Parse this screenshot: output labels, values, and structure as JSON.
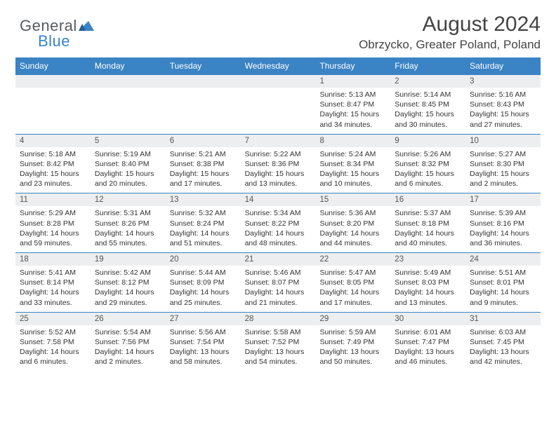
{
  "logo": {
    "general": "General",
    "blue": "Blue"
  },
  "title": "August 2024",
  "location": "Obrzycko, Greater Poland, Poland",
  "colors": {
    "header_bg": "#3a83c4",
    "band_bg": "#edeeef",
    "band_border": "#3a83c4",
    "page_bg": "#ffffff",
    "text": "#333333"
  },
  "dow": [
    "Sunday",
    "Monday",
    "Tuesday",
    "Wednesday",
    "Thursday",
    "Friday",
    "Saturday"
  ],
  "weeks": [
    [
      null,
      null,
      null,
      null,
      {
        "n": "1",
        "sr": "Sunrise: 5:13 AM",
        "ss": "Sunset: 8:47 PM",
        "dl1": "Daylight: 15 hours",
        "dl2": "and 34 minutes."
      },
      {
        "n": "2",
        "sr": "Sunrise: 5:14 AM",
        "ss": "Sunset: 8:45 PM",
        "dl1": "Daylight: 15 hours",
        "dl2": "and 30 minutes."
      },
      {
        "n": "3",
        "sr": "Sunrise: 5:16 AM",
        "ss": "Sunset: 8:43 PM",
        "dl1": "Daylight: 15 hours",
        "dl2": "and 27 minutes."
      }
    ],
    [
      {
        "n": "4",
        "sr": "Sunrise: 5:18 AM",
        "ss": "Sunset: 8:42 PM",
        "dl1": "Daylight: 15 hours",
        "dl2": "and 23 minutes."
      },
      {
        "n": "5",
        "sr": "Sunrise: 5:19 AM",
        "ss": "Sunset: 8:40 PM",
        "dl1": "Daylight: 15 hours",
        "dl2": "and 20 minutes."
      },
      {
        "n": "6",
        "sr": "Sunrise: 5:21 AM",
        "ss": "Sunset: 8:38 PM",
        "dl1": "Daylight: 15 hours",
        "dl2": "and 17 minutes."
      },
      {
        "n": "7",
        "sr": "Sunrise: 5:22 AM",
        "ss": "Sunset: 8:36 PM",
        "dl1": "Daylight: 15 hours",
        "dl2": "and 13 minutes."
      },
      {
        "n": "8",
        "sr": "Sunrise: 5:24 AM",
        "ss": "Sunset: 8:34 PM",
        "dl1": "Daylight: 15 hours",
        "dl2": "and 10 minutes."
      },
      {
        "n": "9",
        "sr": "Sunrise: 5:26 AM",
        "ss": "Sunset: 8:32 PM",
        "dl1": "Daylight: 15 hours",
        "dl2": "and 6 minutes."
      },
      {
        "n": "10",
        "sr": "Sunrise: 5:27 AM",
        "ss": "Sunset: 8:30 PM",
        "dl1": "Daylight: 15 hours",
        "dl2": "and 2 minutes."
      }
    ],
    [
      {
        "n": "11",
        "sr": "Sunrise: 5:29 AM",
        "ss": "Sunset: 8:28 PM",
        "dl1": "Daylight: 14 hours",
        "dl2": "and 59 minutes."
      },
      {
        "n": "12",
        "sr": "Sunrise: 5:31 AM",
        "ss": "Sunset: 8:26 PM",
        "dl1": "Daylight: 14 hours",
        "dl2": "and 55 minutes."
      },
      {
        "n": "13",
        "sr": "Sunrise: 5:32 AM",
        "ss": "Sunset: 8:24 PM",
        "dl1": "Daylight: 14 hours",
        "dl2": "and 51 minutes."
      },
      {
        "n": "14",
        "sr": "Sunrise: 5:34 AM",
        "ss": "Sunset: 8:22 PM",
        "dl1": "Daylight: 14 hours",
        "dl2": "and 48 minutes."
      },
      {
        "n": "15",
        "sr": "Sunrise: 5:36 AM",
        "ss": "Sunset: 8:20 PM",
        "dl1": "Daylight: 14 hours",
        "dl2": "and 44 minutes."
      },
      {
        "n": "16",
        "sr": "Sunrise: 5:37 AM",
        "ss": "Sunset: 8:18 PM",
        "dl1": "Daylight: 14 hours",
        "dl2": "and 40 minutes."
      },
      {
        "n": "17",
        "sr": "Sunrise: 5:39 AM",
        "ss": "Sunset: 8:16 PM",
        "dl1": "Daylight: 14 hours",
        "dl2": "and 36 minutes."
      }
    ],
    [
      {
        "n": "18",
        "sr": "Sunrise: 5:41 AM",
        "ss": "Sunset: 8:14 PM",
        "dl1": "Daylight: 14 hours",
        "dl2": "and 33 minutes."
      },
      {
        "n": "19",
        "sr": "Sunrise: 5:42 AM",
        "ss": "Sunset: 8:12 PM",
        "dl1": "Daylight: 14 hours",
        "dl2": "and 29 minutes."
      },
      {
        "n": "20",
        "sr": "Sunrise: 5:44 AM",
        "ss": "Sunset: 8:09 PM",
        "dl1": "Daylight: 14 hours",
        "dl2": "and 25 minutes."
      },
      {
        "n": "21",
        "sr": "Sunrise: 5:46 AM",
        "ss": "Sunset: 8:07 PM",
        "dl1": "Daylight: 14 hours",
        "dl2": "and 21 minutes."
      },
      {
        "n": "22",
        "sr": "Sunrise: 5:47 AM",
        "ss": "Sunset: 8:05 PM",
        "dl1": "Daylight: 14 hours",
        "dl2": "and 17 minutes."
      },
      {
        "n": "23",
        "sr": "Sunrise: 5:49 AM",
        "ss": "Sunset: 8:03 PM",
        "dl1": "Daylight: 14 hours",
        "dl2": "and 13 minutes."
      },
      {
        "n": "24",
        "sr": "Sunrise: 5:51 AM",
        "ss": "Sunset: 8:01 PM",
        "dl1": "Daylight: 14 hours",
        "dl2": "and 9 minutes."
      }
    ],
    [
      {
        "n": "25",
        "sr": "Sunrise: 5:52 AM",
        "ss": "Sunset: 7:58 PM",
        "dl1": "Daylight: 14 hours",
        "dl2": "and 6 minutes."
      },
      {
        "n": "26",
        "sr": "Sunrise: 5:54 AM",
        "ss": "Sunset: 7:56 PM",
        "dl1": "Daylight: 14 hours",
        "dl2": "and 2 minutes."
      },
      {
        "n": "27",
        "sr": "Sunrise: 5:56 AM",
        "ss": "Sunset: 7:54 PM",
        "dl1": "Daylight: 13 hours",
        "dl2": "and 58 minutes."
      },
      {
        "n": "28",
        "sr": "Sunrise: 5:58 AM",
        "ss": "Sunset: 7:52 PM",
        "dl1": "Daylight: 13 hours",
        "dl2": "and 54 minutes."
      },
      {
        "n": "29",
        "sr": "Sunrise: 5:59 AM",
        "ss": "Sunset: 7:49 PM",
        "dl1": "Daylight: 13 hours",
        "dl2": "and 50 minutes."
      },
      {
        "n": "30",
        "sr": "Sunrise: 6:01 AM",
        "ss": "Sunset: 7:47 PM",
        "dl1": "Daylight: 13 hours",
        "dl2": "and 46 minutes."
      },
      {
        "n": "31",
        "sr": "Sunrise: 6:03 AM",
        "ss": "Sunset: 7:45 PM",
        "dl1": "Daylight: 13 hours",
        "dl2": "and 42 minutes."
      }
    ]
  ]
}
